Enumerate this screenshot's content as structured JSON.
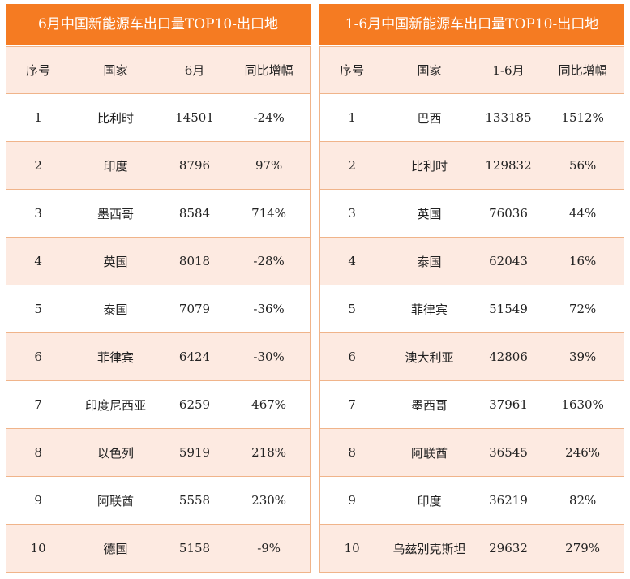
{
  "tables": [
    {
      "title": "6月中国新能源车出口量TOP10-出口地",
      "header": [
        "序号",
        "国家",
        "6月",
        "同比增幅"
      ],
      "rows": [
        [
          "1",
          "比利时",
          "14501",
          "-24%"
        ],
        [
          "2",
          "印度",
          "8796",
          "97%"
        ],
        [
          "3",
          "墨西哥",
          "8584",
          "714%"
        ],
        [
          "4",
          "英国",
          "8018",
          "-28%"
        ],
        [
          "5",
          "泰国",
          "7079",
          "-36%"
        ],
        [
          "6",
          "菲律宾",
          "6424",
          "-30%"
        ],
        [
          "7",
          "印度尼西亚",
          "6259",
          "467%"
        ],
        [
          "8",
          "以色列",
          "5919",
          "218%"
        ],
        [
          "9",
          "阿联酋",
          "5558",
          "230%"
        ],
        [
          "10",
          "德国",
          "5158",
          "-9%"
        ]
      ]
    },
    {
      "title": "1-6月中国新能源车出口量TOP10-出口地",
      "header": [
        "序号",
        "国家",
        "1-6月",
        "同比增幅"
      ],
      "rows": [
        [
          "1",
          "巴西",
          "133185",
          "1512%"
        ],
        [
          "2",
          "比利时",
          "129832",
          "56%"
        ],
        [
          "3",
          "英国",
          "76036",
          "44%"
        ],
        [
          "4",
          "泰国",
          "62043",
          "16%"
        ],
        [
          "5",
          "菲律宾",
          "51549",
          "72%"
        ],
        [
          "6",
          "澳大利亚",
          "42806",
          "39%"
        ],
        [
          "7",
          "墨西哥",
          "37961",
          "1630%"
        ],
        [
          "8",
          "阿联酋",
          "36545",
          "246%"
        ],
        [
          "9",
          "印度",
          "36219",
          "82%"
        ],
        [
          "10",
          "乌兹别克斯坦",
          "29632",
          "279%"
        ]
      ]
    }
  ]
}
